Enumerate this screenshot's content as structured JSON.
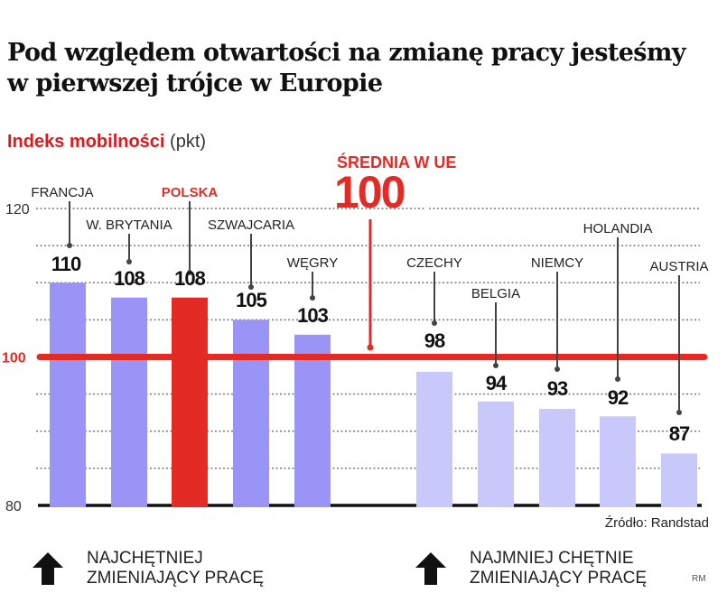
{
  "title": "Pod względem otwartości na zmianę pracy jesteśmy w pierwszej trójce w Europie",
  "subtitle": {
    "highlight": "Indeks mobilności",
    "unit": "(pkt)"
  },
  "colors": {
    "accent": "#e32a24",
    "bar_high": "#9a94f6",
    "bar_low": "#c9c8fa",
    "bar_poland": "#e32a24",
    "axis": "#111111"
  },
  "chart_data": {
    "type": "bar",
    "title": "Indeks mobilności (pkt)",
    "xlabel": "",
    "ylabel": "pkt",
    "ylim": [
      80,
      120
    ],
    "yticks": [
      80,
      100,
      120
    ],
    "grid": true,
    "grid_step": 5,
    "categories": [
      "FRANCJA",
      "W. BRYTANIA",
      "POLSKA",
      "SZWAJCARIA",
      "WĘGRY",
      "CZECHY",
      "BELGIA",
      "NIEMCY",
      "HOLANDIA",
      "AUSTRIA"
    ],
    "values": [
      110,
      108,
      108,
      105,
      103,
      98,
      94,
      93,
      92,
      87
    ],
    "groups": [
      "high",
      "high",
      "highlight",
      "high",
      "high",
      "low",
      "low",
      "low",
      "low",
      "low"
    ],
    "reference_line": {
      "value": 100,
      "label": "ŚREDNIA W UE",
      "value_label": "100"
    },
    "source": "Źródło: Randstad"
  },
  "legend": [
    {
      "icon": "arrow-up-icon",
      "label": "NAJCHĘTNIEJ\nZMIENIAJĄCY PRACĘ"
    },
    {
      "icon": "arrow-up-icon",
      "label": "NAJMNIEJ CHĘTNIE\nZMIENIAJĄCY PRACĘ"
    }
  ],
  "credit": "RM"
}
